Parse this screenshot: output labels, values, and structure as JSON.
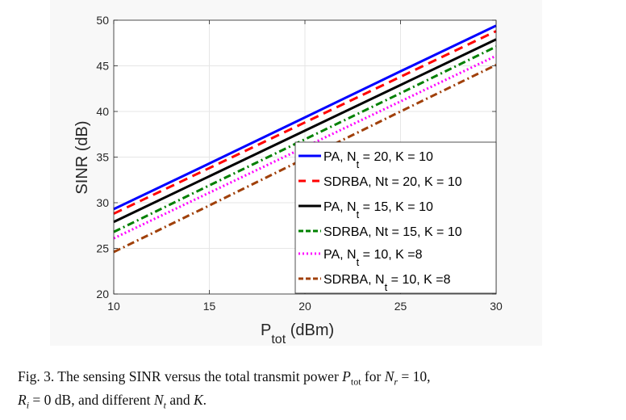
{
  "chart_data": {
    "type": "line",
    "title": "",
    "xlabel": "P",
    "xlabel_sub": "tot",
    "xlabel_unit": " (dBm)",
    "ylabel": "SINR (dB)",
    "xlim": [
      10,
      30
    ],
    "ylim": [
      20,
      50
    ],
    "xticks": [
      10,
      15,
      20,
      25,
      30
    ],
    "yticks": [
      20,
      25,
      30,
      35,
      40,
      45,
      50
    ],
    "grid": true,
    "legend_position": "bottom-right",
    "x": [
      10,
      15,
      20,
      25,
      30
    ],
    "series": [
      {
        "name": "PA, N_t = 20, K = 10",
        "label_main": "PA, N",
        "label_sub": "t",
        "label_rest": " = 20, K = 10",
        "color": "#0000ff",
        "style": "solid",
        "values": [
          29.3,
          34.3,
          39.35,
          44.4,
          49.4
        ]
      },
      {
        "name": "SDRBA, Nt = 20, K = 10",
        "label_main": "SDRBA, Nt = 20, K = 10",
        "label_sub": "",
        "label_rest": "",
        "color": "#ff0000",
        "style": "dashed",
        "values": [
          28.8,
          33.8,
          38.8,
          43.8,
          48.8
        ]
      },
      {
        "name": "PA, N_t = 15, K = 10",
        "label_main": "PA, N",
        "label_sub": "t",
        "label_rest": " = 15, K = 10",
        "color": "#000000",
        "style": "solid",
        "values": [
          27.9,
          32.9,
          37.9,
          42.9,
          47.9
        ]
      },
      {
        "name": "SDRBA, Nt = 15, K = 10",
        "label_main": "SDRBA, Nt = 15, K = 10",
        "label_sub": "",
        "label_rest": "",
        "color": "#008000",
        "style": "dashdot",
        "values": [
          26.8,
          31.9,
          36.95,
          42.0,
          47.1
        ]
      },
      {
        "name": "PA, N_t = 10, K =8",
        "label_main": "PA, N",
        "label_sub": "t",
        "label_rest": " =  10, K  =8",
        "color": "#ff00ff",
        "style": "dotted",
        "values": [
          26.1,
          31.1,
          36.1,
          41.1,
          46.1
        ]
      },
      {
        "name": "SDRBA, N_t = 10, K =8",
        "label_main": "SDRBA, N",
        "label_sub": "t",
        "label_rest": " =  10, K  =8",
        "color": "#a0400a",
        "style": "dashdot",
        "values": [
          24.6,
          29.7,
          34.85,
          40.0,
          45.1
        ]
      }
    ]
  },
  "caption": {
    "line1_prefix": "Fig. 3.  The sensing SINR versus the total transmit power ",
    "line1_math1": "P",
    "line1_math1_sub": "tot",
    "line1_mid": " for ",
    "line1_math2": "N",
    "line1_math2_sub": "r",
    "line1_suffix": " = 10,",
    "line2_math1": "R",
    "line2_math1_sub": "i",
    "line2_mid": " = 0 dB, and different ",
    "line2_math2": "N",
    "line2_math2_sub": "t",
    "line2_and": " and ",
    "line2_math3": "K",
    "line2_end": "."
  }
}
